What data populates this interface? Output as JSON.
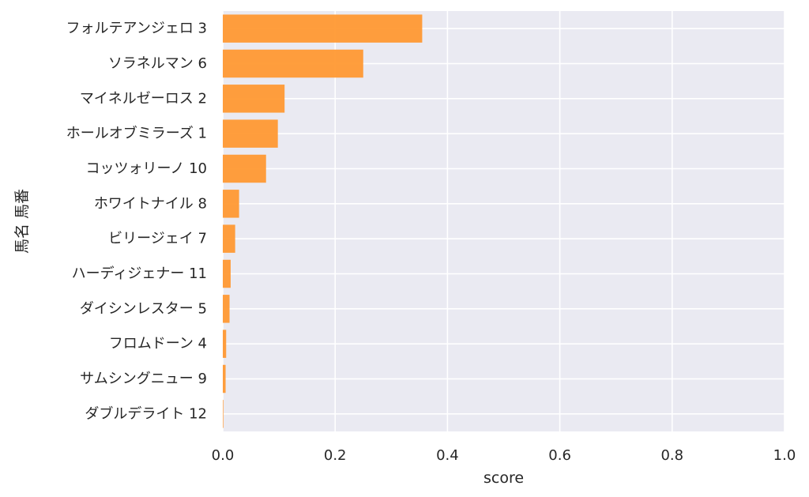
{
  "chart_data": {
    "type": "bar",
    "orientation": "horizontal",
    "xlabel": "score",
    "ylabel": "馬名 馬番",
    "xlim": [
      0.0,
      1.0
    ],
    "x_ticks": [
      "0.0",
      "0.2",
      "0.4",
      "0.6",
      "0.8",
      "1.0"
    ],
    "x_tick_values": [
      0.0,
      0.2,
      0.4,
      0.6,
      0.8,
      1.0
    ],
    "grid": true,
    "colors": {
      "bar": "#ff9933",
      "plot_background": "#eaeaf2",
      "grid": "#ffffff"
    },
    "categories": [
      "フォルテアンジェロ 3",
      "ソラネルマン 6",
      "マイネルゼーロス 2",
      "ホールオブミラーズ 1",
      "コッツォリーノ 10",
      "ホワイトナイル 8",
      "ビリージェイ 7",
      "ハーディジェナー 11",
      "ダイシンレスター 5",
      "フロムドーン 4",
      "サムシングニュー 9",
      "ダブルデライト 12"
    ],
    "values": [
      0.355,
      0.25,
      0.11,
      0.098,
      0.077,
      0.029,
      0.022,
      0.014,
      0.012,
      0.006,
      0.005,
      0.001
    ]
  }
}
